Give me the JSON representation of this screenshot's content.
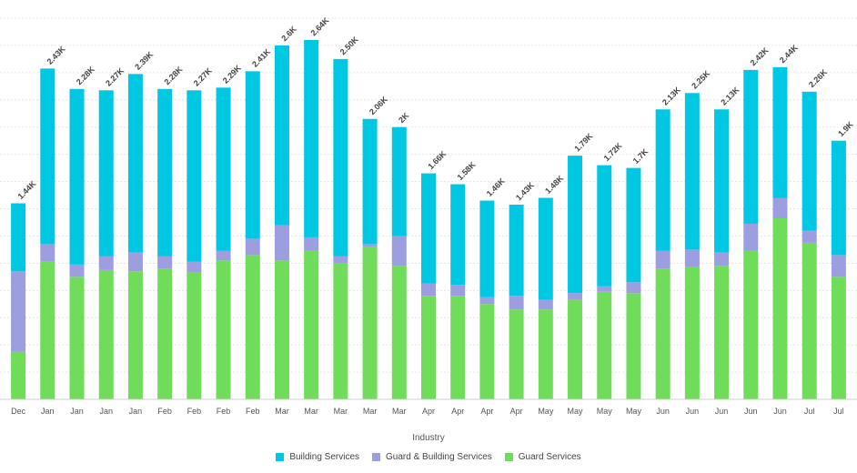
{
  "chart_data": {
    "type": "bar",
    "stacked": true,
    "xlabel": "Industry",
    "ylabel": "",
    "ylim": [
      0,
      2800
    ],
    "grid": true,
    "legend_position": "bottom-center",
    "categories": [
      "Dec",
      "Jan",
      "Jan",
      "Jan",
      "Jan",
      "Feb",
      "Feb",
      "Feb",
      "Feb",
      "Mar",
      "Mar",
      "Mar",
      "Mar",
      "Mar",
      "Apr",
      "Apr",
      "Apr",
      "Apr",
      "May",
      "May",
      "May",
      "May",
      "Jun",
      "Jun",
      "Jun",
      "Jun",
      "Jun",
      "Jul",
      "Jul"
    ],
    "totals_labels": [
      "1.44K",
      "2.43K",
      "2.28K",
      "2.27K",
      "2.39K",
      "2.28K",
      "2.27K",
      "2.29K",
      "2.41K",
      "2.6K",
      "2.64K",
      "2.50K",
      "2.06K",
      "2K",
      "1.66K",
      "1.58K",
      "1.46K",
      "1.43K",
      "1.48K",
      "1.79K",
      "1.72K",
      "1.7K",
      "2.13K",
      "2.25K",
      "2.13K",
      "2.42K",
      "2.44K",
      "2.26K",
      "1.9K"
    ],
    "series": [
      {
        "name": "Guard Services",
        "color": "#6fdc5a",
        "values": [
          350,
          1010,
          900,
          950,
          940,
          960,
          930,
          1020,
          1060,
          1020,
          1090,
          1000,
          1120,
          980,
          760,
          760,
          700,
          660,
          660,
          730,
          790,
          780,
          960,
          970,
          980,
          1090,
          1330,
          1150,
          900
        ]
      },
      {
        "name": "Guard & Building Services",
        "color": "#9d9ee0",
        "values": [
          590,
          130,
          90,
          100,
          140,
          90,
          80,
          70,
          120,
          260,
          100,
          50,
          20,
          220,
          90,
          80,
          50,
          100,
          70,
          50,
          40,
          80,
          130,
          130,
          100,
          200,
          150,
          90,
          160
        ]
      },
      {
        "name": "Building Services",
        "color": "#00c8e2",
        "values": [
          500,
          1290,
          1290,
          1220,
          1310,
          1230,
          1260,
          1200,
          1230,
          1320,
          1450,
          1450,
          920,
          800,
          810,
          740,
          710,
          670,
          750,
          1010,
          890,
          840,
          1040,
          1150,
          1050,
          1130,
          960,
          1020,
          840
        ]
      }
    ]
  }
}
